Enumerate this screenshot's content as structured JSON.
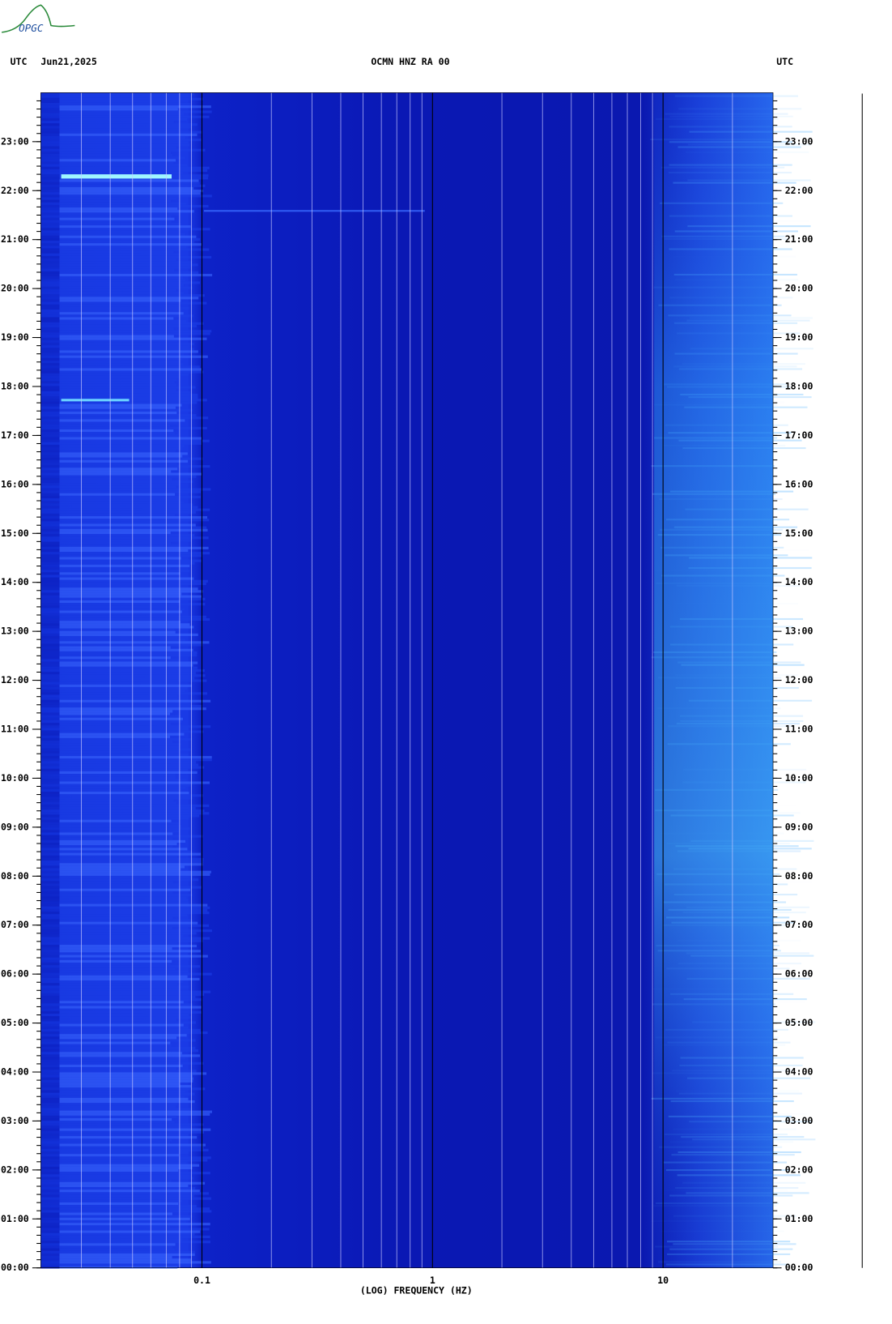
{
  "logo": "OPGC",
  "chart_data": {
    "type": "spectrogram",
    "title": "OCMN HNZ RA 00",
    "date": "Jun21,2025",
    "left_label": "UTC",
    "right_label": "UTC",
    "xlabel": "(LOG) FREQUENCY (HZ)",
    "xscale": "log",
    "xlim": [
      0.02,
      30
    ],
    "xticks": [
      0.1,
      1,
      10
    ],
    "ylim": [
      0,
      24
    ],
    "yticks": [
      {
        "value": 0,
        "label": "00:00"
      },
      {
        "value": 1,
        "label": "01:00"
      },
      {
        "value": 2,
        "label": "02:00"
      },
      {
        "value": 3,
        "label": "03:00"
      },
      {
        "value": 4,
        "label": "04:00"
      },
      {
        "value": 5,
        "label": "05:00"
      },
      {
        "value": 6,
        "label": "06:00"
      },
      {
        "value": 7,
        "label": "07:00"
      },
      {
        "value": 8,
        "label": "08:00"
      },
      {
        "value": 9,
        "label": "09:00"
      },
      {
        "value": 10,
        "label": "10:00"
      },
      {
        "value": 11,
        "label": "11:00"
      },
      {
        "value": 12,
        "label": "12:00"
      },
      {
        "value": 13,
        "label": "13:00"
      },
      {
        "value": 14,
        "label": "14:00"
      },
      {
        "value": 15,
        "label": "15:00"
      },
      {
        "value": 16,
        "label": "16:00"
      },
      {
        "value": 17,
        "label": "17:00"
      },
      {
        "value": 18,
        "label": "18:00"
      },
      {
        "value": 19,
        "label": "19:00"
      },
      {
        "value": 20,
        "label": "20:00"
      },
      {
        "value": 21,
        "label": "21:00"
      },
      {
        "value": 22,
        "label": "22:00"
      },
      {
        "value": 23,
        "label": "23:00"
      }
    ],
    "grid": true
  }
}
